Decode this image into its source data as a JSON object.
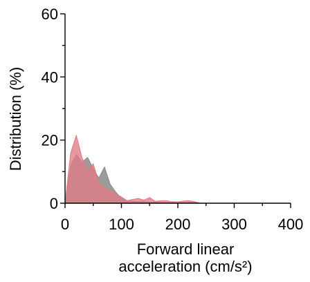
{
  "chart_data": {
    "type": "area",
    "title": "",
    "xlabel_lines": [
      "Forward linear",
      "acceleration (cm/s²)"
    ],
    "ylabel": "Distribution (%)",
    "xlim": [
      0,
      400
    ],
    "ylim": [
      0,
      60
    ],
    "x_ticks": [
      0,
      100,
      200,
      300,
      400
    ],
    "y_ticks": [
      0,
      20,
      40,
      60
    ],
    "x_minor_ticks": [
      50,
      150,
      250,
      350
    ],
    "y_minor_ticks": [
      10,
      30,
      50
    ],
    "grid": false,
    "legend": "none",
    "series": [
      {
        "color": "#8a8a8a",
        "x": [
          0,
          10,
          20,
          30,
          40,
          50,
          60,
          70,
          80,
          90,
          100,
          110,
          120,
          130,
          140,
          150,
          160,
          170,
          180,
          190,
          200,
          210,
          220,
          230,
          240
        ],
        "values": [
          0,
          12,
          15.5,
          13,
          14.5,
          11,
          8,
          11.5,
          6,
          3.5,
          1.5,
          0.8,
          0.6,
          0.5,
          0.6,
          0.3,
          0.5,
          0.3,
          0.2,
          0.5,
          0.4,
          0.2,
          0.3,
          0.3,
          0
        ]
      },
      {
        "color": "#e07b85",
        "x": [
          0,
          10,
          20,
          30,
          40,
          50,
          60,
          70,
          80,
          90,
          100,
          110,
          120,
          130,
          140,
          150,
          160,
          170,
          180,
          190,
          200,
          210,
          220,
          230,
          240
        ],
        "values": [
          0,
          16,
          21.5,
          14.5,
          10.5,
          12.5,
          6.5,
          5,
          4,
          3,
          2,
          0.8,
          1.2,
          1.5,
          1,
          1.8,
          0.6,
          0.8,
          0.8,
          0.4,
          0.4,
          0.7,
          0.8,
          0.5,
          0
        ]
      }
    ]
  }
}
